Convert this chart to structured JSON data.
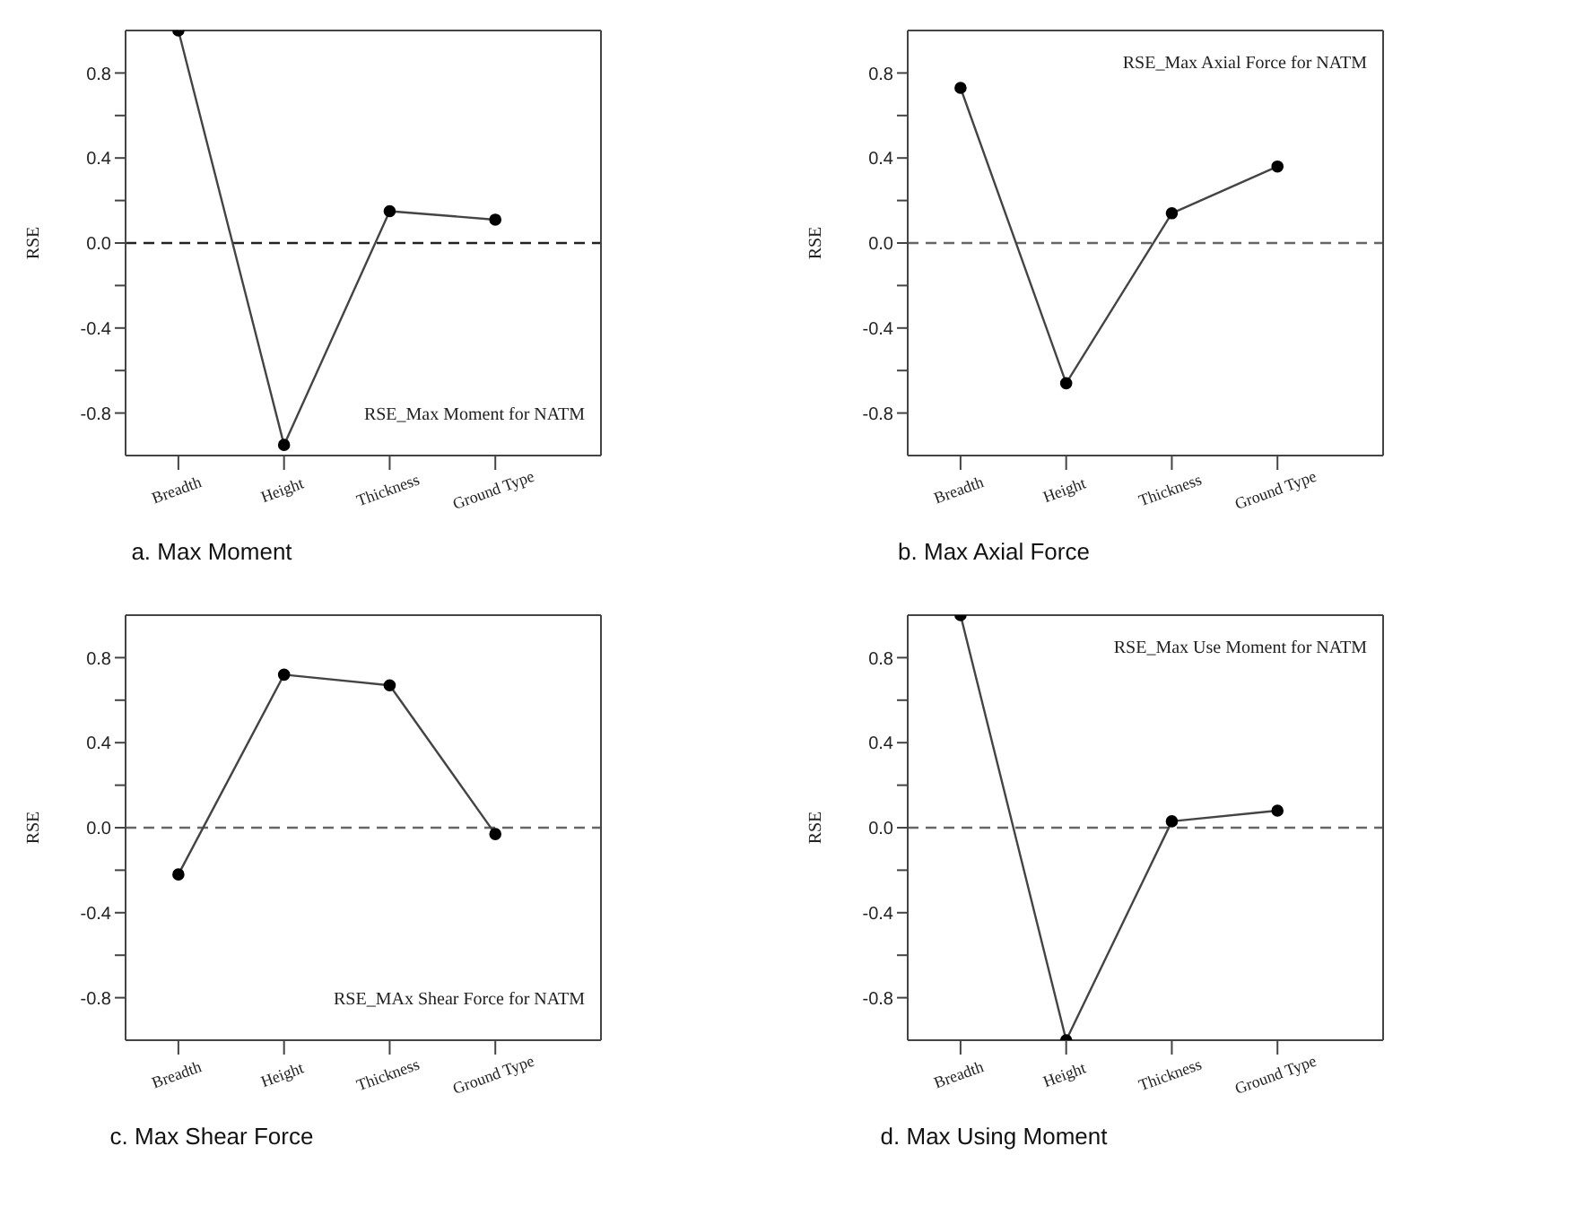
{
  "chart_data": [
    {
      "type": "line",
      "title": "a. Max Moment",
      "ylabel": "RSE",
      "categories": [
        "Breadth",
        "Height",
        "Thickness",
        "Ground Type"
      ],
      "series": [
        {
          "color": "#444444",
          "values": [
            1.0,
            -0.95,
            0.15,
            0.11
          ]
        }
      ],
      "ylim": [
        -1,
        1
      ],
      "yticks": [
        -0.8,
        {
          "value": -0.6,
          "label": null
        },
        -0.4,
        {
          "value": -0.2,
          "label": null
        },
        {
          "value": 0,
          "label": "0.0"
        },
        {
          "value": 0.2,
          "label": null
        },
        0.4,
        {
          "value": 0.6,
          "label": null
        },
        0.8
      ],
      "ref_lines": [
        {
          "axis": "y",
          "value": 0,
          "color": "#222222",
          "line_style": "dashed"
        }
      ],
      "annotations": [
        "RSE_Max Moment for NATM"
      ],
      "marker": "circle"
    },
    {
      "type": "line",
      "title": "b. Max Axial Force",
      "ylabel": "RSE",
      "categories": [
        "Breadth",
        "Height",
        "Thickness",
        "Ground Type"
      ],
      "series": [
        {
          "color": "#444444",
          "values": [
            0.73,
            -0.66,
            0.14,
            0.36
          ]
        }
      ],
      "ylim": [
        -1,
        1
      ],
      "yticks": [
        -0.8,
        {
          "value": -0.6,
          "label": null
        },
        -0.4,
        {
          "value": -0.2,
          "label": null
        },
        {
          "value": 0,
          "label": "0.0"
        },
        {
          "value": 0.2,
          "label": null
        },
        0.4,
        {
          "value": 0.6,
          "label": null
        },
        0.8
      ],
      "ref_lines": [
        {
          "axis": "y",
          "value": 0,
          "color": "#666666",
          "line_style": "dashed"
        }
      ],
      "annotations": [
        "RSE_Max Axial Force for NATM"
      ],
      "marker": "circle"
    },
    {
      "type": "line",
      "title": "c. Max Shear Force",
      "ylabel": "RSE",
      "categories": [
        "Breadth",
        "Height",
        "Thickness",
        "Ground Type"
      ],
      "series": [
        {
          "color": "#444444",
          "values": [
            -0.22,
            0.72,
            0.67,
            -0.03
          ]
        }
      ],
      "ylim": [
        -1,
        1
      ],
      "yticks": [
        -0.8,
        {
          "value": -0.6,
          "label": null
        },
        -0.4,
        {
          "value": -0.2,
          "label": null
        },
        {
          "value": 0,
          "label": "0.0"
        },
        {
          "value": 0.2,
          "label": null
        },
        0.4,
        {
          "value": 0.6,
          "label": null
        },
        0.8
      ],
      "ref_lines": [
        {
          "axis": "y",
          "value": 0,
          "color": "#666666",
          "line_style": "dashed"
        }
      ],
      "annotations": [
        "RSE_MAx Shear Force for NATM"
      ],
      "marker": "circle"
    },
    {
      "type": "line",
      "title": "d. Max Using Moment",
      "ylabel": "RSE",
      "categories": [
        "Breadth",
        "Height",
        "Thickness",
        "Ground Type"
      ],
      "series": [
        {
          "color": "#444444",
          "values": [
            1.0,
            -1.0,
            0.03,
            0.08
          ]
        }
      ],
      "ylim": [
        -1,
        1
      ],
      "yticks": [
        -0.8,
        {
          "value": -0.6,
          "label": null
        },
        -0.4,
        {
          "value": -0.2,
          "label": null
        },
        {
          "value": 0,
          "label": "0.0"
        },
        {
          "value": 0.2,
          "label": null
        },
        0.4,
        {
          "value": 0.6,
          "label": null
        },
        0.8
      ],
      "ref_lines": [
        {
          "axis": "y",
          "value": 0,
          "color": "#666666",
          "line_style": "dashed"
        }
      ],
      "annotations": [
        "RSE_Max Use Moment for NATM"
      ],
      "marker": "circle"
    }
  ]
}
